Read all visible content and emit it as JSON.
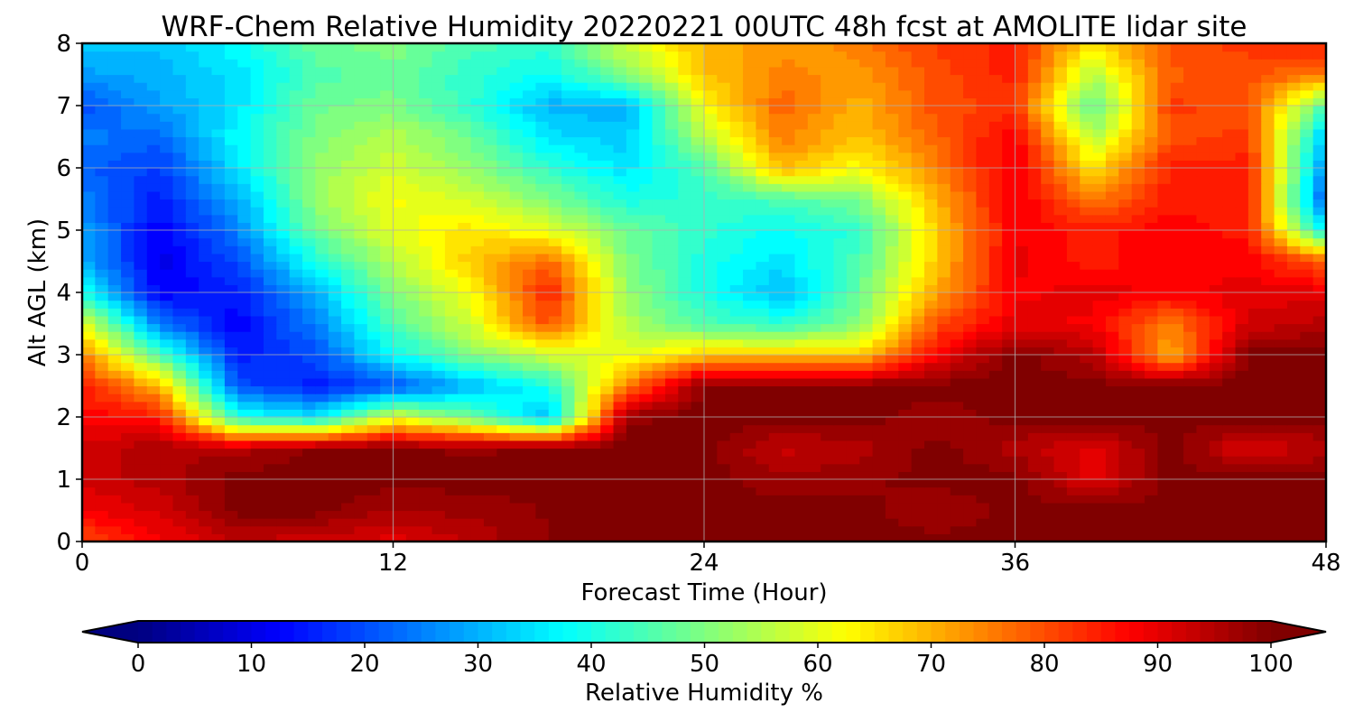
{
  "chart_data": {
    "type": "heatmap",
    "title": "WRF-Chem Relative Humidity 20220221 00UTC 48h fcst at AMOLITE lidar site",
    "xlabel": "Forecast Time (Hour)",
    "ylabel": "Alt AGL (km)",
    "xlim": [
      0,
      48
    ],
    "ylim": [
      0,
      8
    ],
    "xticks": [
      "0",
      "12",
      "24",
      "36",
      "48"
    ],
    "yticks": [
      "0",
      "1",
      "2",
      "3",
      "4",
      "5",
      "6",
      "7",
      "8"
    ],
    "grid": true,
    "x": [
      0,
      3,
      6,
      9,
      12,
      15,
      18,
      21,
      24,
      27,
      30,
      33,
      36,
      39,
      42,
      45,
      48
    ],
    "y": [
      0,
      0.5,
      1,
      1.5,
      2,
      2.5,
      3,
      3.5,
      4,
      4.5,
      5,
      5.5,
      6,
      6.5,
      7,
      7.5,
      8
    ],
    "z_rows_by_altitude": [
      [
        80,
        88,
        94,
        92,
        90,
        94,
        99,
        100,
        100,
        100,
        100,
        100,
        100,
        100,
        100,
        100,
        100
      ],
      [
        88,
        92,
        100,
        100,
        96,
        97,
        99,
        100,
        100,
        100,
        100,
        96,
        100,
        100,
        100,
        100,
        100
      ],
      [
        92,
        95,
        100,
        100,
        100,
        100,
        100,
        100,
        100,
        97,
        98,
        100,
        100,
        90,
        100,
        100,
        100
      ],
      [
        92,
        96,
        95,
        99,
        100,
        98,
        100,
        100,
        100,
        93,
        95,
        100,
        95,
        90,
        100,
        90,
        95
      ],
      [
        88,
        85,
        40,
        35,
        60,
        48,
        30,
        98,
        100,
        100,
        100,
        97,
        100,
        100,
        100,
        100,
        100
      ],
      [
        85,
        70,
        20,
        15,
        20,
        30,
        40,
        75,
        100,
        100,
        100,
        100,
        100,
        100,
        100,
        100,
        100
      ],
      [
        75,
        45,
        15,
        20,
        38,
        50,
        58,
        60,
        68,
        68,
        68,
        88,
        100,
        95,
        70,
        100,
        100
      ],
      [
        60,
        25,
        12,
        25,
        45,
        58,
        80,
        55,
        45,
        42,
        50,
        80,
        90,
        88,
        75,
        92,
        95
      ],
      [
        40,
        12,
        15,
        30,
        50,
        62,
        85,
        52,
        40,
        30,
        48,
        72,
        88,
        90,
        88,
        90,
        90
      ],
      [
        30,
        10,
        20,
        40,
        55,
        68,
        78,
        50,
        40,
        35,
        45,
        68,
        90,
        85,
        88,
        88,
        78
      ],
      [
        28,
        12,
        25,
        48,
        60,
        65,
        60,
        48,
        42,
        38,
        42,
        68,
        88,
        85,
        88,
        85,
        35
      ],
      [
        25,
        15,
        30,
        52,
        62,
        58,
        50,
        40,
        42,
        45,
        50,
        70,
        90,
        75,
        85,
        85,
        20
      ],
      [
        22,
        18,
        35,
        52,
        58,
        52,
        42,
        35,
        45,
        70,
        62,
        75,
        90,
        65,
        85,
        85,
        25
      ],
      [
        25,
        22,
        38,
        50,
        55,
        48,
        35,
        32,
        55,
        75,
        68,
        78,
        88,
        55,
        80,
        82,
        30
      ],
      [
        20,
        28,
        35,
        48,
        50,
        42,
        30,
        30,
        62,
        78,
        70,
        80,
        82,
        45,
        82,
        80,
        45
      ],
      [
        28,
        30,
        35,
        45,
        48,
        42,
        38,
        50,
        68,
        75,
        72,
        80,
        85,
        55,
        78,
        80,
        75
      ],
      [
        32,
        32,
        38,
        48,
        50,
        45,
        42,
        58,
        70,
        72,
        75,
        82,
        85,
        65,
        80,
        82,
        85
      ]
    ],
    "colorbar": {
      "label": "Relative Humidity %",
      "ticks": [
        "0",
        "10",
        "20",
        "30",
        "40",
        "50",
        "60",
        "70",
        "80",
        "90",
        "100"
      ],
      "min": 0,
      "max": 100,
      "colormap": "jet",
      "extend": "both"
    }
  }
}
